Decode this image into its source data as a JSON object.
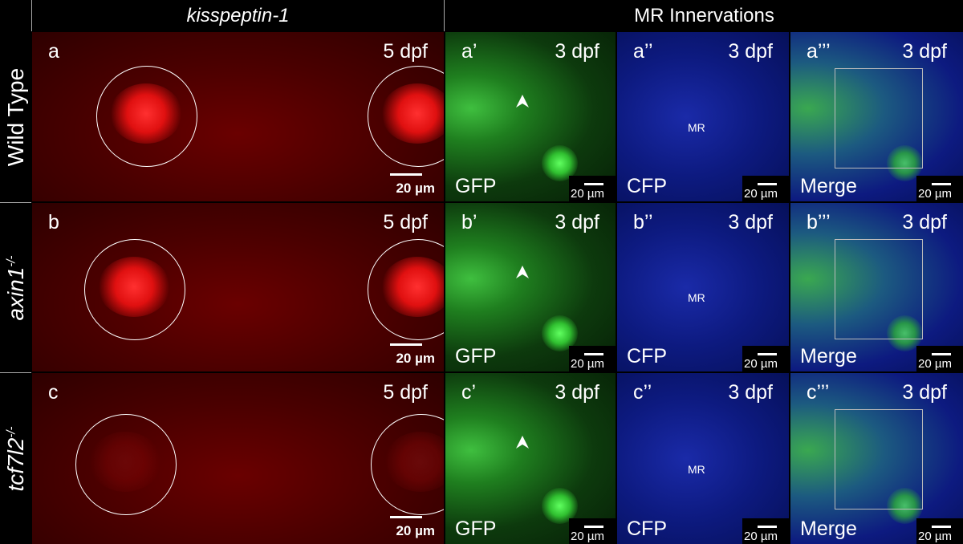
{
  "header": {
    "left": "kisspeptin-1",
    "right": "MR Innervations"
  },
  "rows": [
    {
      "label": "Wild Type",
      "panels": [
        {
          "letter": "a",
          "stage": "5 dpf",
          "scale": "20 µm"
        },
        {
          "letter": "a’",
          "stage": "3 dpf",
          "channel": "GFP",
          "scale": "20 µm"
        },
        {
          "letter": "a’’",
          "stage": "3 dpf",
          "channel": "CFP",
          "marker": "MR",
          "scale": "20 µm"
        },
        {
          "letter": "a’’’",
          "stage": "3 dpf",
          "channel": "Merge",
          "scale": "20 µm"
        }
      ]
    },
    {
      "label": "axin1",
      "sup": "-/-",
      "panels": [
        {
          "letter": "b",
          "stage": "5 dpf",
          "scale": "20 µm"
        },
        {
          "letter": "b’",
          "stage": "3 dpf",
          "channel": "GFP",
          "scale": "20 µm"
        },
        {
          "letter": "b’’",
          "stage": "3 dpf",
          "channel": "CFP",
          "marker": "MR",
          "scale": "20 µm"
        },
        {
          "letter": "b’’’",
          "stage": "3 dpf",
          "channel": "Merge",
          "scale": "20 µm"
        }
      ]
    },
    {
      "label": "tcf7l2",
      "sup": "-/-",
      "panels": [
        {
          "letter": "c",
          "stage": "5 dpf",
          "scale": "20 µm"
        },
        {
          "letter": "c’",
          "stage": "3 dpf",
          "channel": "GFP",
          "scale": "20 µm"
        },
        {
          "letter": "c’’",
          "stage": "3 dpf",
          "channel": "CFP",
          "marker": "MR",
          "scale": "20 µm"
        },
        {
          "letter": "c’’’",
          "stage": "3 dpf",
          "channel": "Merge",
          "scale": "20 µm"
        }
      ]
    }
  ]
}
